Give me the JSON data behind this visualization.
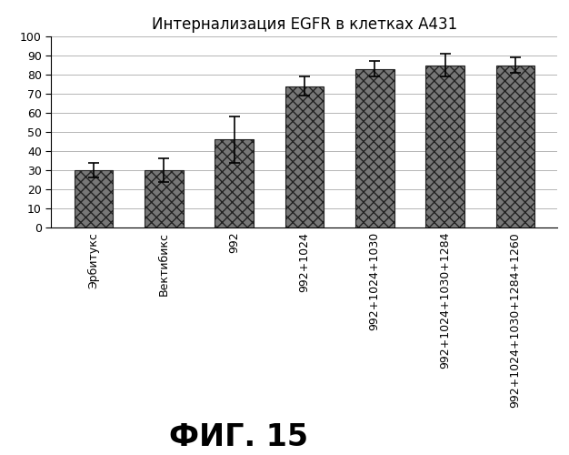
{
  "title": "Интернализация EGFR в клетках А431",
  "categories": [
    "Эрбитукс",
    "Вектибикс",
    "992",
    "992+1024",
    "992+1024+1030",
    "992+1024+1030+1284",
    "992+1024+1030+1284+1260"
  ],
  "values": [
    30,
    30,
    46,
    74,
    83,
    85,
    85
  ],
  "errors": [
    4,
    6,
    12,
    5,
    4,
    6,
    4
  ],
  "bar_color": "#777777",
  "bar_edge_color": "#222222",
  "hatch": "xxx",
  "ylim": [
    0,
    100
  ],
  "yticks": [
    0,
    10,
    20,
    30,
    40,
    50,
    60,
    70,
    80,
    90,
    100
  ],
  "figure_label": "ФИГ. 15",
  "figure_label_fontsize": 24,
  "title_fontsize": 12,
  "tick_fontsize": 9,
  "xtick_fontsize": 9,
  "grid_color": "#aaaaaa",
  "background_color": "#ffffff",
  "bar_width": 0.55
}
